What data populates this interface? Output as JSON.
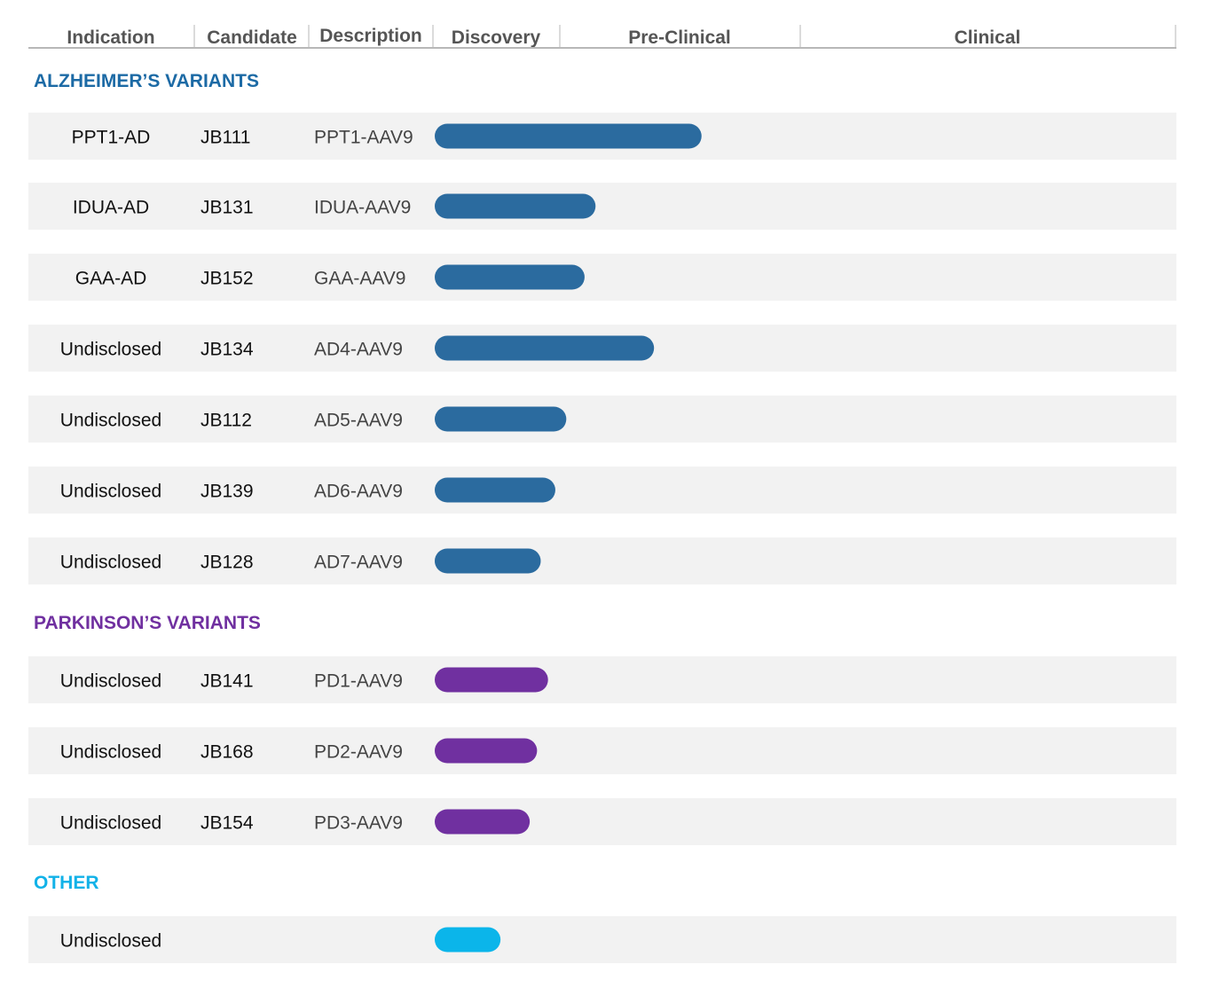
{
  "chart_data": {
    "type": "bar",
    "orientation": "horizontal",
    "stages": [
      "Discovery",
      "Pre-Clinical",
      "Clinical"
    ],
    "columns": [
      "Indication",
      "Candidate",
      "Description"
    ],
    "groups": [
      {
        "label": "ALZHEIMER’S VARIANTS",
        "color": "#2b6b9f",
        "label_color": "#1c6aa5",
        "rows": [
          {
            "indication": "PPT1-AD",
            "candidate": "JB111",
            "description": "PPT1-AAV9",
            "progress": 0.73
          },
          {
            "indication": "IDUA-AD",
            "candidate": "JB131",
            "description": "IDUA-AAV9",
            "progress": 0.44
          },
          {
            "indication": "GAA-AD",
            "candidate": "JB152",
            "description": "GAA-AAV9",
            "progress": 0.41
          },
          {
            "indication": "Undisclosed",
            "candidate": "JB134",
            "description": "AD4-AAV9",
            "progress": 0.6
          },
          {
            "indication": "Undisclosed",
            "candidate": "JB112",
            "description": "AD5-AAV9",
            "progress": 0.36
          },
          {
            "indication": "Undisclosed",
            "candidate": "JB139",
            "description": "AD6-AAV9",
            "progress": 0.33
          },
          {
            "indication": "Undisclosed",
            "candidate": "JB128",
            "description": "AD7-AAV9",
            "progress": 0.29
          }
        ]
      },
      {
        "label": "PARKINSON’S VARIANTS",
        "color": "#7030a0",
        "label_color": "#7030a0",
        "rows": [
          {
            "indication": "Undisclosed",
            "candidate": "JB141",
            "description": "PD1-AAV9",
            "progress": 0.31
          },
          {
            "indication": "Undisclosed",
            "candidate": "JB168",
            "description": "PD2-AAV9",
            "progress": 0.28
          },
          {
            "indication": "Undisclosed",
            "candidate": "JB154",
            "description": "PD3-AAV9",
            "progress": 0.26
          }
        ]
      },
      {
        "label": "OTHER",
        "color": "#0bb5ea",
        "label_color": "#12b2e8",
        "rows": [
          {
            "indication": "Undisclosed",
            "candidate": "",
            "description": "",
            "progress": 0.18
          }
        ]
      }
    ]
  }
}
